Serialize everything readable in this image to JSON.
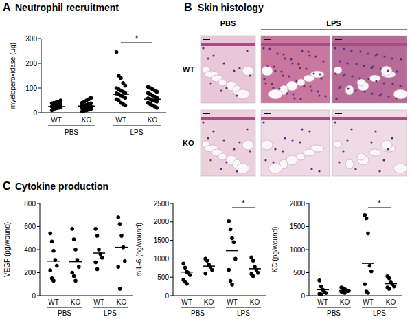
{
  "panels": [
    {
      "letter": "A",
      "title": "Neutrophil recruitment"
    },
    {
      "letter": "B",
      "title": "Skin histology"
    },
    {
      "letter": "C",
      "title": "Cytokine production"
    }
  ],
  "histology": {
    "columns": [
      "PBS",
      "LPS"
    ],
    "rows": [
      "WT",
      "KO"
    ]
  },
  "chart_data": [
    {
      "type": "dot",
      "y_label": "myeloperoxidase (µg)",
      "color": "#000000",
      "categories": [
        "WT",
        "KO",
        "WT",
        "KO"
      ],
      "group_labels": [
        "PBS",
        "LPS"
      ],
      "ylim": [
        0,
        300
      ],
      "yticks": [
        0,
        100,
        200,
        300
      ],
      "values": [
        [
          10,
          15,
          18,
          20,
          22,
          25,
          28,
          30,
          32,
          35,
          38,
          40,
          42,
          45,
          50
        ],
        [
          5,
          8,
          10,
          12,
          15,
          18,
          20,
          22,
          25,
          25,
          28,
          30,
          32,
          35,
          38,
          40,
          45,
          50,
          55,
          60
        ],
        [
          245,
          150,
          140,
          120,
          110,
          100,
          95,
          90,
          85,
          80,
          78,
          75,
          70,
          65,
          60,
          55,
          50,
          40,
          35,
          30
        ],
        [
          105,
          100,
          95,
          90,
          85,
          80,
          75,
          70,
          65,
          60,
          58,
          55,
          50,
          48,
          45,
          40,
          35,
          30,
          25,
          20
        ]
      ],
      "means": [
        25,
        27,
        75,
        55
      ],
      "annotations": [
        {
          "text": "*",
          "categories": [
            2,
            3
          ]
        }
      ]
    },
    {
      "type": "dot",
      "y_label": "VEGF (pg/wound)",
      "color": "#000000",
      "categories": [
        "WT",
        "KO",
        "WT",
        "KO"
      ],
      "group_labels": [
        "PBS",
        "LPS"
      ],
      "ylim": [
        0,
        800
      ],
      "yticks": [
        0,
        200,
        400,
        600,
        800
      ],
      "values": [
        [
          540,
          470,
          390,
          310,
          260,
          220,
          150,
          130
        ],
        [
          580,
          490,
          400,
          310,
          250,
          200,
          170,
          130
        ],
        [
          580,
          520,
          400,
          360,
          330,
          290,
          230
        ],
        [
          680,
          620,
          520,
          420,
          300,
          250,
          60
        ]
      ],
      "means": [
        300,
        295,
        370,
        420
      ],
      "annotations": []
    },
    {
      "type": "dot",
      "y_label": "mIL-6 (pg/wound)",
      "color": "#000000",
      "categories": [
        "WT",
        "KO",
        "WT",
        "KO"
      ],
      "group_labels": [
        "PBS",
        "LPS"
      ],
      "ylim": [
        0,
        2500
      ],
      "yticks": [
        0,
        500,
        1000,
        1500,
        2000,
        2500
      ],
      "values": [
        [
          870,
          760,
          650,
          620,
          560,
          430,
          380,
          320
        ],
        [
          1000,
          950,
          850,
          780,
          700,
          600
        ],
        [
          2020,
          1800,
          1560,
          1450,
          1000,
          700,
          400,
          300
        ],
        [
          1040,
          950,
          780,
          700,
          620,
          590,
          530
        ]
      ],
      "means": [
        640,
        800,
        1220,
        730
      ],
      "annotations": [
        {
          "text": "*",
          "categories": [
            2,
            3
          ]
        }
      ]
    },
    {
      "type": "dot",
      "y_label": "KC (pg/wound)",
      "color": "#000000",
      "categories": [
        "WT",
        "KO",
        "WT",
        "KO"
      ],
      "group_labels": [
        "PBS",
        "LPS"
      ],
      "ylim": [
        0,
        2000
      ],
      "yticks": [
        0,
        500,
        1000,
        1500,
        2000
      ],
      "values": [
        [
          330,
          200,
          130,
          80,
          60,
          40,
          30
        ],
        [
          180,
          160,
          140,
          120,
          100,
          90,
          70,
          60
        ],
        [
          1750,
          1680,
          1350,
          650,
          530,
          250,
          90,
          60
        ],
        [
          420,
          380,
          300,
          250,
          200,
          180,
          150
        ]
      ],
      "means": [
        130,
        110,
        700,
        260
      ],
      "annotations": [
        {
          "text": "*",
          "categories": [
            2,
            3
          ]
        }
      ]
    }
  ]
}
